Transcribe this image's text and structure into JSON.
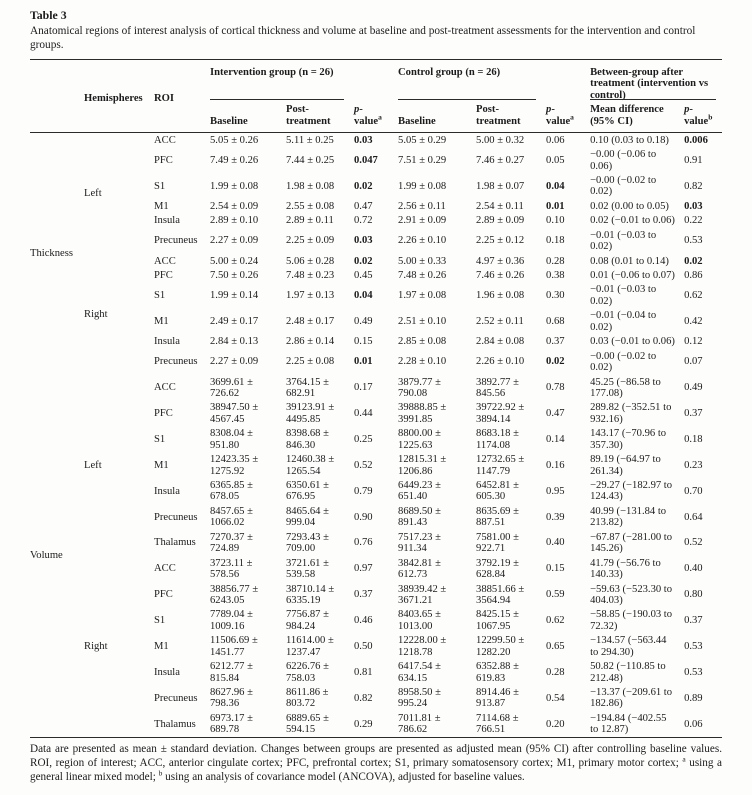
{
  "table": {
    "label": "Table 3",
    "caption": "Anatomical regions of interest analysis of cortical thickness and volume at baseline and post-treatment assessments for the intervention and control groups.",
    "headers": {
      "hemispheres": "Hemispheres",
      "roi": "ROI",
      "group_intervention": "Intervention group (n = 26)",
      "group_control": "Control group (n = 26)",
      "group_between": "Between-group after treatment (intervention vs control)",
      "baseline": "Baseline",
      "post_treatment": "Post-treatment",
      "p_italic": "p",
      "p_hyphen": "-",
      "p_word": "value",
      "p_sup_a": "a",
      "p_sup_b": "b",
      "mean_difference": "Mean difference (95% CI)"
    },
    "region_groups": [
      {
        "label": "Thickness",
        "start": 0,
        "span": 12
      },
      {
        "label": "Volume",
        "start": 12,
        "span": 14
      }
    ],
    "hemi_groups": [
      {
        "label": "Left",
        "start": 0,
        "span": 6
      },
      {
        "label": "Right",
        "start": 6,
        "span": 6
      },
      {
        "label": "Left",
        "start": 12,
        "span": 7
      },
      {
        "label": "Right",
        "start": 19,
        "span": 7
      }
    ],
    "rows": [
      {
        "roi": "ACC",
        "ib": "5.05 ± 0.26",
        "ip": "5.11 ± 0.25",
        "ipv": "0.03",
        "ipb": 1,
        "cb": "5.05 ± 0.29",
        "cp": "5.00 ± 0.32",
        "cpv": "0.06",
        "md": "0.10 (0.03 to 0.18)",
        "mpv": "0.006",
        "mpb": 1
      },
      {
        "roi": "PFC",
        "ib": "7.49 ± 0.26",
        "ip": "7.44 ± 0.25",
        "ipv": "0.047",
        "ipb": 1,
        "cb": "7.51 ± 0.29",
        "cp": "7.46 ± 0.27",
        "cpv": "0.05",
        "md": "−0.00 (−0.06 to 0.06)",
        "mpv": "0.91"
      },
      {
        "roi": "S1",
        "ib": "1.99 ± 0.08",
        "ip": "1.98 ± 0.08",
        "ipv": "0.02",
        "ipb": 1,
        "cb": "1.99 ± 0.08",
        "cp": "1.98 ± 0.07",
        "cpv": "0.04",
        "cpb": 1,
        "md": "−0.00 (−0.02 to 0.02)",
        "mpv": "0.82"
      },
      {
        "roi": "M1",
        "ib": "2.54 ± 0.09",
        "ip": "2.55 ± 0.08",
        "ipv": "0.47",
        "cb": "2.56 ± 0.11",
        "cp": "2.54 ± 0.11",
        "cpv": "0.01",
        "cpb": 1,
        "md": "0.02 (0.00 to 0.05)",
        "mpv": "0.03",
        "mpb": 1
      },
      {
        "roi": "Insula",
        "ib": "2.89 ± 0.10",
        "ip": "2.89 ± 0.11",
        "ipv": "0.72",
        "cb": "2.91 ± 0.09",
        "cp": "2.89 ± 0.09",
        "cpv": "0.10",
        "md": "0.02 (−0.01 to 0.06)",
        "mpv": "0.22"
      },
      {
        "roi": "Precuneus",
        "ib": "2.27 ± 0.09",
        "ip": "2.25 ± 0.09",
        "ipv": "0.03",
        "ipb": 1,
        "cb": "2.26 ± 0.10",
        "cp": "2.25 ± 0.12",
        "cpv": "0.18",
        "md": "−0.01 (−0.03 to 0.02)",
        "mpv": "0.53"
      },
      {
        "roi": "ACC",
        "ib": "5.00 ± 0.24",
        "ip": "5.06 ± 0.28",
        "ipv": "0.02",
        "ipb": 1,
        "cb": "5.00 ± 0.33",
        "cp": "4.97 ± 0.36",
        "cpv": "0.28",
        "md": "0.08 (0.01 to 0.14)",
        "mpv": "0.02",
        "mpb": 1
      },
      {
        "roi": "PFC",
        "ib": "7.50 ± 0.26",
        "ip": "7.48 ± 0.23",
        "ipv": "0.45",
        "cb": "7.48 ± 0.26",
        "cp": "7.46 ± 0.26",
        "cpv": "0.38",
        "md": "0.01 (−0.06 to 0.07)",
        "mpv": "0.86"
      },
      {
        "roi": "S1",
        "ib": "1.99 ± 0.14",
        "ip": "1.97 ± 0.13",
        "ipv": "0.04",
        "ipb": 1,
        "cb": "1.97 ± 0.08",
        "cp": "1.96 ± 0.08",
        "cpv": "0.30",
        "md": "−0.01 (−0.03 to 0.02)",
        "mpv": "0.62"
      },
      {
        "roi": "M1",
        "ib": "2.49 ± 0.17",
        "ip": "2.48 ± 0.17",
        "ipv": "0.49",
        "cb": "2.51 ± 0.10",
        "cp": "2.52 ± 0.11",
        "cpv": "0.68",
        "md": "−0.01 (−0.04 to 0.02)",
        "mpv": "0.42"
      },
      {
        "roi": "Insula",
        "ib": "2.84 ± 0.13",
        "ip": "2.86 ± 0.14",
        "ipv": "0.15",
        "cb": "2.85 ± 0.08",
        "cp": "2.84 ± 0.08",
        "cpv": "0.37",
        "md": "0.03 (−0.01 to 0.06)",
        "mpv": "0.12"
      },
      {
        "roi": "Precuneus",
        "ib": "2.27 ± 0.09",
        "ip": "2.25 ± 0.08",
        "ipv": "0.01",
        "ipb": 1,
        "cb": "2.28 ± 0.10",
        "cp": "2.26 ± 0.10",
        "cpv": "0.02",
        "cpb": 1,
        "md": "−0.00 (−0.02 to 0.02)",
        "mpv": "0.07"
      },
      {
        "roi": "ACC",
        "ib": "3699.61 ± 726.62",
        "ip": "3764.15 ± 682.91",
        "ipv": "0.17",
        "cb": "3879.77 ± 790.08",
        "cp": "3892.77 ± 845.56",
        "cpv": "0.78",
        "md": "45.25 (−86.58 to 177.08)",
        "mpv": "0.49"
      },
      {
        "roi": "PFC",
        "ib": "38947.50 ± 4567.45",
        "ip": "39123.91 ± 4495.85",
        "ipv": "0.44",
        "cb": "39888.85 ± 3991.85",
        "cp": "39722.92 ± 3894.14",
        "cpv": "0.47",
        "md": "289.82 (−352.51 to 932.16)",
        "mpv": "0.37"
      },
      {
        "roi": "S1",
        "ib": "8308.04 ± 951.80",
        "ip": "8398.68 ± 846.30",
        "ipv": "0.25",
        "cb": "8800.00 ± 1225.63",
        "cp": "8683.18 ± 1174.08",
        "cpv": "0.14",
        "md": "143.17 (−70.96 to 357.30)",
        "mpv": "0.18"
      },
      {
        "roi": "M1",
        "ib": "12423.35 ± 1275.92",
        "ip": "12460.38 ± 1265.54",
        "ipv": "0.52",
        "cb": "12815.31 ± 1206.86",
        "cp": "12732.65 ± 1147.79",
        "cpv": "0.16",
        "md": "89.19 (−64.97 to 261.34)",
        "mpv": "0.23"
      },
      {
        "roi": "Insula",
        "ib": "6365.85 ± 678.05",
        "ip": "6350.61 ± 676.95",
        "ipv": "0.79",
        "cb": "6449.23 ± 651.40",
        "cp": "6452.81 ± 605.30",
        "cpv": "0.95",
        "md": "−29.27 (−182.97 to 124.43)",
        "mpv": "0.70"
      },
      {
        "roi": "Precuneus",
        "ib": "8457.65 ± 1066.02",
        "ip": "8465.64 ± 999.04",
        "ipv": "0.90",
        "cb": "8689.50 ± 891.43",
        "cp": "8635.69 ± 887.51",
        "cpv": "0.39",
        "md": "40.99 (−131.84 to 213.82)",
        "mpv": "0.64"
      },
      {
        "roi": "Thalamus",
        "ib": "7270.37 ± 724.89",
        "ip": "7293.43 ± 709.00",
        "ipv": "0.76",
        "cb": "7517.23 ± 911.34",
        "cp": "7581.00 ± 922.71",
        "cpv": "0.40",
        "md": "−67.87 (−281.00 to 145.26)",
        "mpv": "0.52"
      },
      {
        "roi": "ACC",
        "ib": "3723.11 ± 578.56",
        "ip": "3721.61 ± 539.58",
        "ipv": "0.97",
        "cb": "3842.81 ± 612.73",
        "cp": "3792.19 ± 628.84",
        "cpv": "0.15",
        "md": "41.79 (−56.76 to 140.33)",
        "mpv": "0.40"
      },
      {
        "roi": "PFC",
        "ib": "38856.77 ± 6243.05",
        "ip": "38710.14 ± 6335.19",
        "ipv": "0.37",
        "cb": "38939.42 ± 3671.21",
        "cp": "38851.66 ± 3564.94",
        "cpv": "0.59",
        "md": "−59.63 (−523.30 to 404.03)",
        "mpv": "0.80"
      },
      {
        "roi": "S1",
        "ib": "7789.04 ± 1009.16",
        "ip": "7756.87 ± 984.24",
        "ipv": "0.46",
        "cb": "8403.65 ± 1013.00",
        "cp": "8425.15 ± 1067.95",
        "cpv": "0.62",
        "md": "−58.85 (−190.03 to 72.32)",
        "mpv": "0.37"
      },
      {
        "roi": "M1",
        "ib": "11506.69 ± 1451.77",
        "ip": "11614.00 ± 1237.47",
        "ipv": "0.50",
        "cb": "12228.00 ± 1218.78",
        "cp": "12299.50 ± 1282.20",
        "cpv": "0.65",
        "md": "−134.57 (−563.44 to 294.30)",
        "mpv": "0.53"
      },
      {
        "roi": "Insula",
        "ib": "6212.77 ± 815.84",
        "ip": "6226.76 ± 758.03",
        "ipv": "0.81",
        "cb": "6417.54 ± 634.15",
        "cp": "6352.88 ± 619.83",
        "cpv": "0.28",
        "md": "50.82 (−110.85 to 212.48)",
        "mpv": "0.53"
      },
      {
        "roi": "Precuneus",
        "ib": "8627.96 ± 798.36",
        "ip": "8611.86 ± 803.72",
        "ipv": "0.82",
        "cb": "8958.50 ± 995.24",
        "cp": "8914.46 ± 913.87",
        "cpv": "0.54",
        "md": "−13.37 (−209.61 to 182.86)",
        "mpv": "0.89"
      },
      {
        "roi": "Thalamus",
        "ib": "6973.17 ± 689.78",
        "ip": "6889.65 ± 594.15",
        "ipv": "0.29",
        "cb": "7011.81 ± 786.62",
        "cp": "7114.68 ± 766.51",
        "cpv": "0.20",
        "md": "−194.84 (−402.55 to 12.87)",
        "mpv": "0.06"
      }
    ]
  },
  "footnote": {
    "part1": "Data are presented as mean ± standard deviation. Changes between groups are presented as adjusted mean (95% CI) after controlling baseline values. ROI, region of interest; ACC, anterior cingulate cortex; PFC, prefrontal cortex; S1, primary somatosensory cortex; M1, primary motor cortex; ",
    "sup_a": "a",
    "part2": " using a general linear mixed model; ",
    "sup_b": "b",
    "part3": " using an analysis of covariance model (ANCOVA), adjusted for baseline values."
  }
}
